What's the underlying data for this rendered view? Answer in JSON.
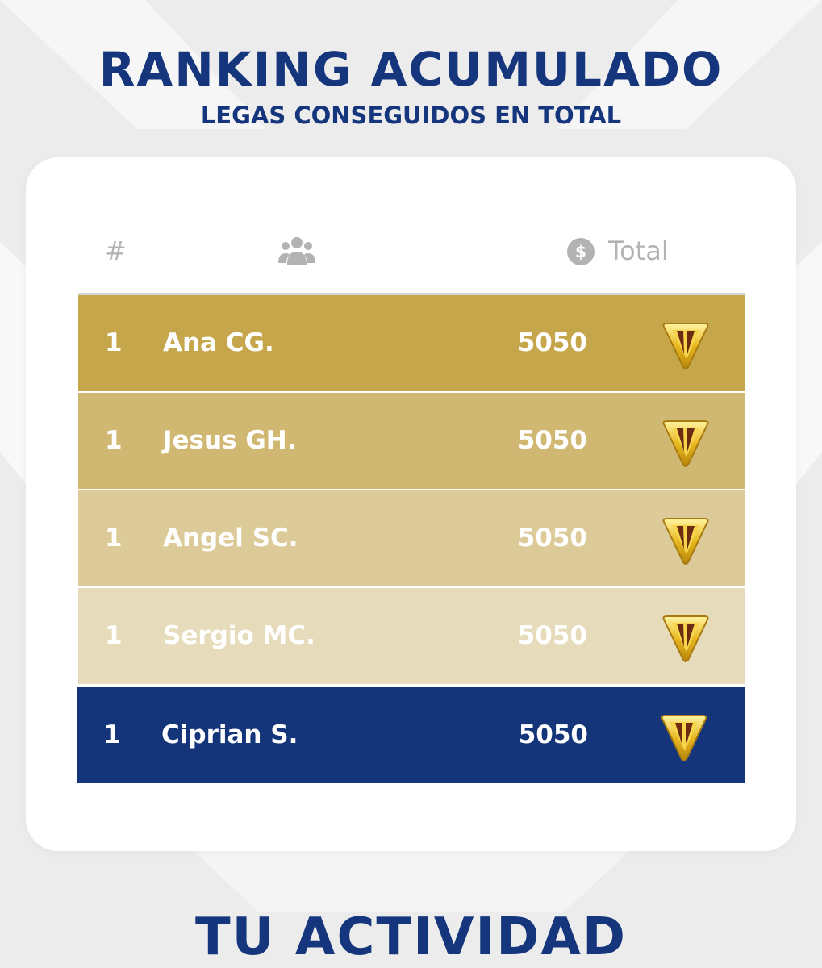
{
  "header": {
    "title": "RANKING ACUMULADO",
    "subtitle": "LEGAS CONSEGUIDOS EN TOTAL"
  },
  "table": {
    "columns": [
      "#",
      "Total"
    ],
    "rows": [
      {
        "rank": 1,
        "name": "Ana CG.",
        "total": 5050
      },
      {
        "rank": 1,
        "name": "Jesus GH.",
        "total": 5050
      },
      {
        "rank": 1,
        "name": "Angel SC.",
        "total": 5050
      },
      {
        "rank": 1,
        "name": "Sergio MC.",
        "total": 5050
      },
      {
        "rank": 1,
        "name": "Ciprian S.",
        "total": 5050
      }
    ]
  },
  "footer": {
    "title": "TU ACTIVIDAD"
  }
}
